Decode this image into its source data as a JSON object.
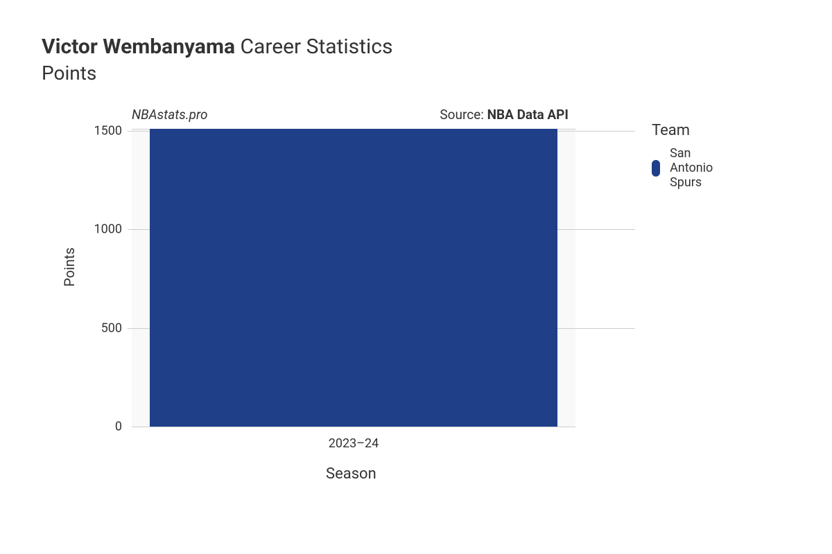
{
  "title": {
    "player_name": "Victor Wembanyama",
    "suffix": "Career Statistics",
    "subtitle": "Points"
  },
  "watermark": "NBAstats.pro",
  "source": {
    "prefix": "Source:",
    "name": "NBA Data API"
  },
  "chart": {
    "type": "bar",
    "background_color": "#f9f9f9",
    "grid_color": "#cccccc",
    "text_color": "#333333",
    "x": {
      "title": "Season",
      "categories": [
        "2023–24"
      ],
      "label_fontsize": 18,
      "title_fontsize": 22
    },
    "y": {
      "title": "Points",
      "ylim": [
        0,
        1510
      ],
      "ticks": [
        0,
        500,
        1000,
        1500
      ],
      "label_fontsize": 18,
      "title_fontsize": 20
    },
    "series": [
      {
        "team": "San Antonio Spurs",
        "color": "#1f3f89",
        "values": [
          1510
        ]
      }
    ],
    "bar_width": 0.92
  },
  "legend": {
    "title": "Team",
    "items": [
      {
        "label": "San Antonio Spurs",
        "color": "#1f3f89"
      }
    ]
  }
}
